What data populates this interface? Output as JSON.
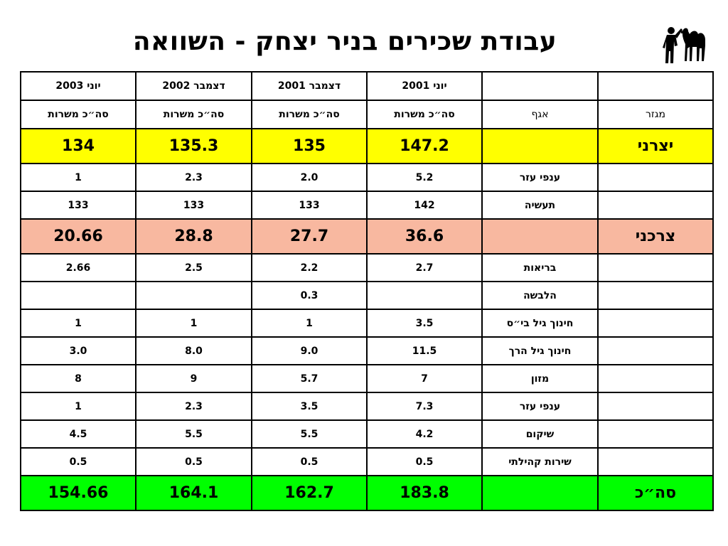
{
  "title": "עבודת שכירים בניר יצחק - השוואה",
  "header": {
    "periods": [
      "יוני 2001",
      "דצמבר 2001",
      "דצמבר 2002",
      "יוני 2003"
    ],
    "sector_label": "מגזר",
    "branch_label": "אגף",
    "total_positions_label": "סה״כ משרות"
  },
  "rows": [
    {
      "sector": "יצרני",
      "branch": "",
      "values": [
        "147.2",
        "135",
        "135.3",
        "134"
      ]
    },
    {
      "sector": "",
      "branch": "ענפי עזר",
      "values": [
        "5.2",
        "2.0",
        "2.3",
        "1"
      ]
    },
    {
      "sector": "",
      "branch": "תעשיה",
      "values": [
        "142",
        "133",
        "133",
        "133"
      ]
    },
    {
      "sector": "צרכני",
      "branch": "",
      "values": [
        "36.6",
        "27.7",
        "28.8",
        "20.66"
      ]
    },
    {
      "sector": "",
      "branch": "בריאות",
      "values": [
        "2.7",
        "2.2",
        "2.5",
        "2.66"
      ]
    },
    {
      "sector": "",
      "branch": "הלבשה",
      "values": [
        "",
        "0.3",
        "",
        ""
      ]
    },
    {
      "sector": "",
      "branch": "חינוך גיל בי״ס",
      "values": [
        "3.5",
        "1",
        "1",
        "1"
      ]
    },
    {
      "sector": "",
      "branch": "חינוך גיל הרך",
      "values": [
        "11.5",
        "9.0",
        "8.0",
        "3.0"
      ]
    },
    {
      "sector": "",
      "branch": "מזון",
      "values": [
        "7",
        "5.7",
        "9",
        "8"
      ]
    },
    {
      "sector": "",
      "branch": "ענפי עזר",
      "values": [
        "7.3",
        "3.5",
        "2.3",
        "1"
      ]
    },
    {
      "sector": "",
      "branch": "שיקום",
      "values": [
        "4.2",
        "5.5",
        "5.5",
        "4.5"
      ]
    },
    {
      "sector": "",
      "branch": "שירות קהילתי",
      "values": [
        "0.5",
        "0.5",
        "0.5",
        "0.5"
      ]
    },
    {
      "sector": "סה״כ",
      "branch": "",
      "values": [
        "183.8",
        "162.7",
        "164.1",
        "154.66"
      ]
    }
  ],
  "colors": {
    "producer_row": "#ffff00",
    "consumer_row": "#f8b8a0",
    "total_row": "#00ff00"
  }
}
